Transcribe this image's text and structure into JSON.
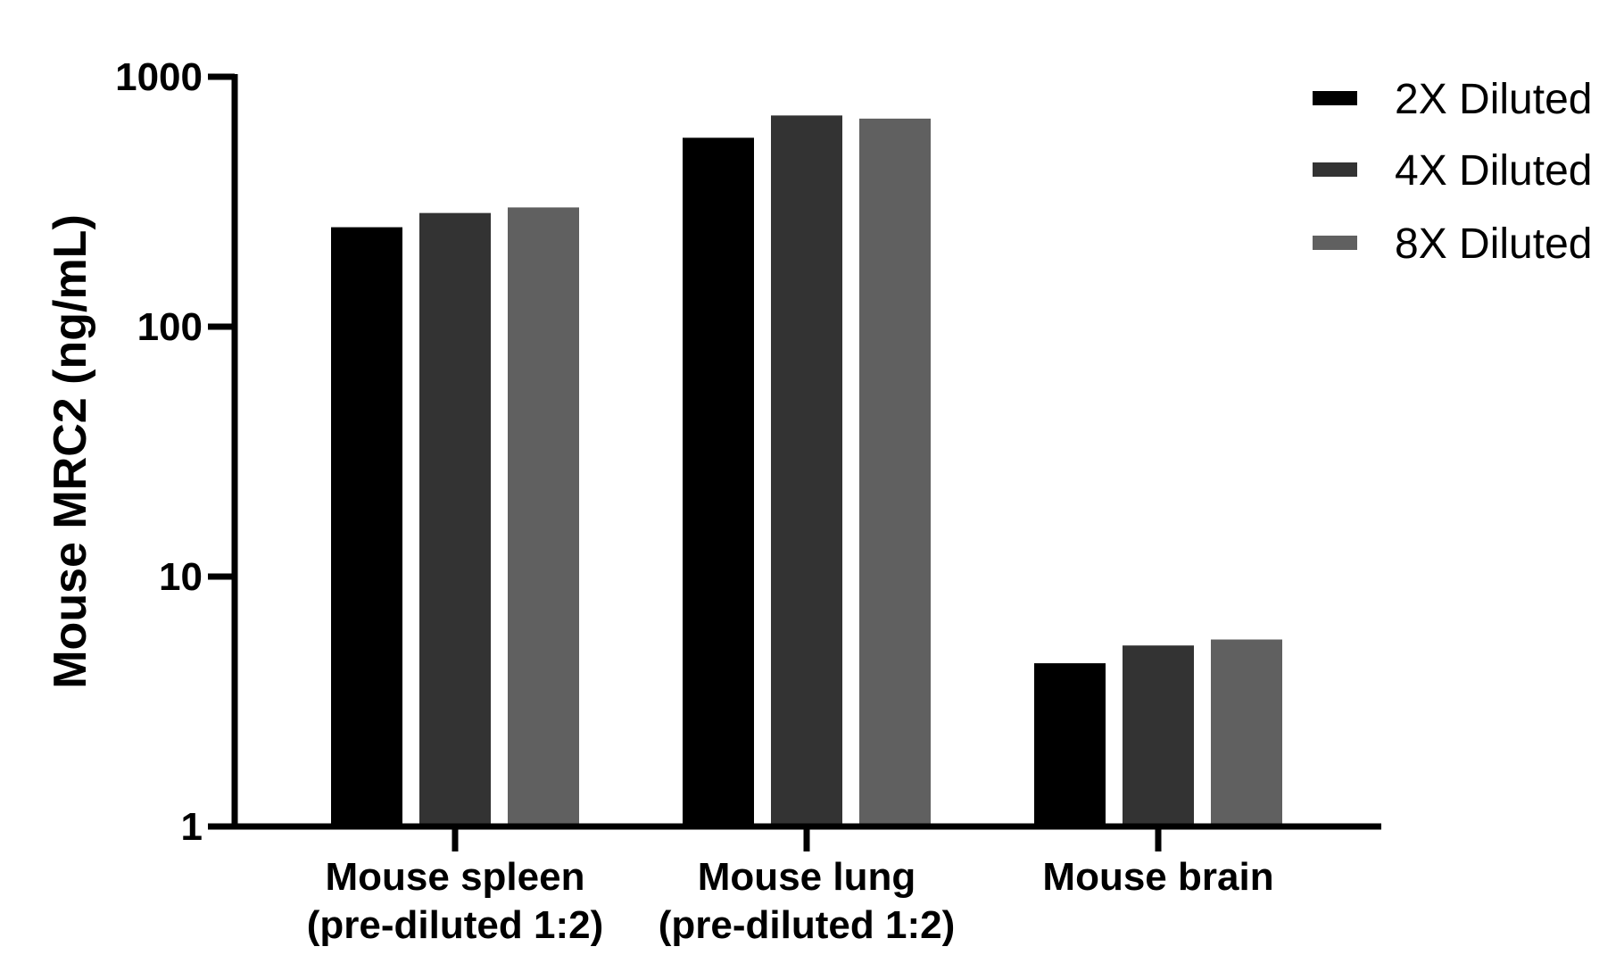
{
  "chart_data": {
    "type": "bar",
    "title": "",
    "xlabel": "",
    "ylabel": "Mouse MRC2 (ng/mL)",
    "yscale": "log",
    "ylim": [
      1,
      1000
    ],
    "yticks": [
      "1",
      "10",
      "100",
      "1000"
    ],
    "categories": [
      {
        "line1": "Mouse spleen",
        "line2": "(pre-diluted 1:2)"
      },
      {
        "line1": "Mouse lung",
        "line2": "(pre-diluted 1:2)"
      },
      {
        "line1": "Mouse brain",
        "line2": ""
      }
    ],
    "series": [
      {
        "name": "2X Diluted",
        "color": "#000000",
        "values": [
          250,
          570,
          4.5
        ]
      },
      {
        "name": "4X Diluted",
        "color": "#333333",
        "values": [
          285,
          700,
          5.3
        ]
      },
      {
        "name": "8X Diluted",
        "color": "#606060",
        "values": [
          300,
          680,
          5.6
        ]
      }
    ],
    "legend_position": "top-right",
    "grid": false
  }
}
